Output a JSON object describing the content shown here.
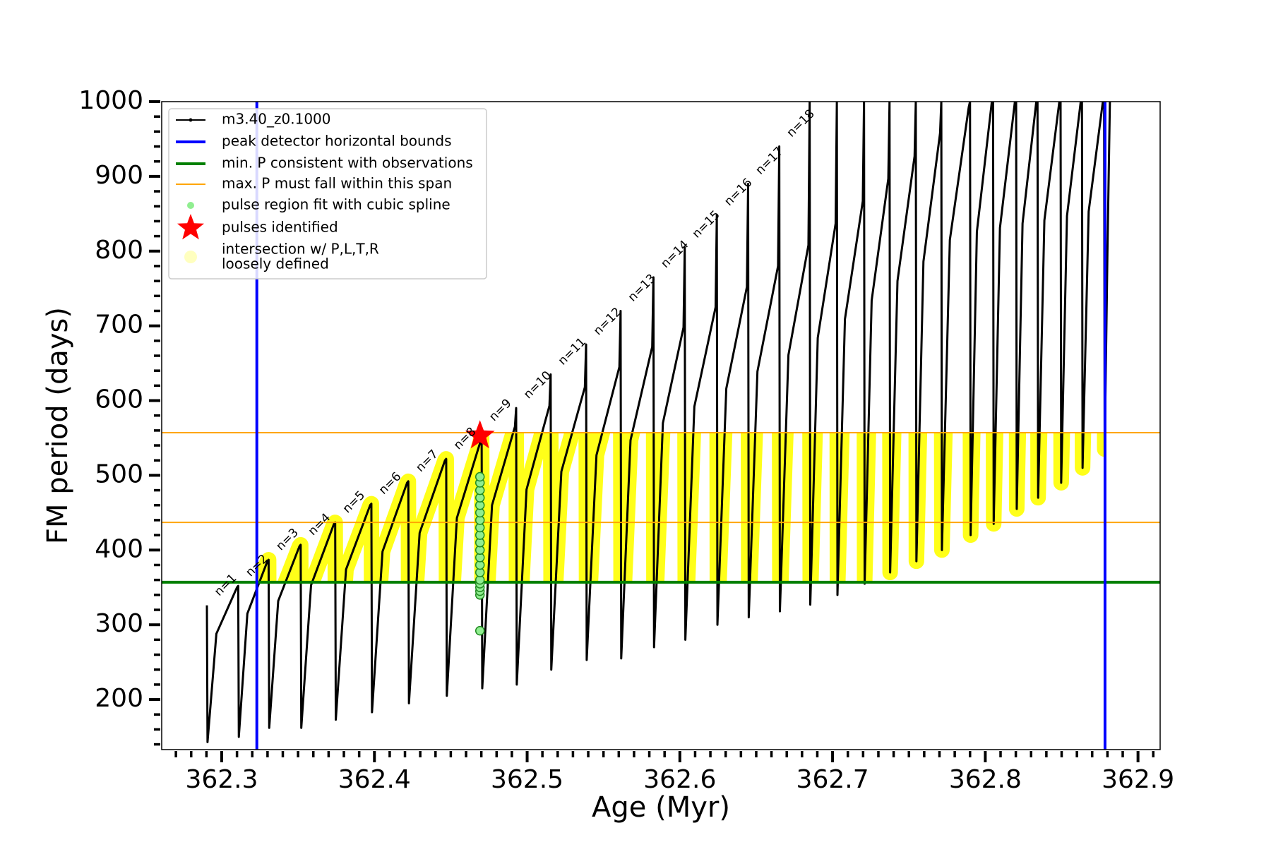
{
  "chart_data": {
    "type": "line",
    "xlabel": "Age (Myr)",
    "ylabel": "FM period (days)",
    "xlim": [
      362.2607,
      362.9145
    ],
    "ylim": [
      133,
      1000
    ],
    "xticks": [
      362.3,
      362.4,
      362.5,
      362.6,
      362.7,
      362.8,
      362.9
    ],
    "yticks": [
      200,
      300,
      400,
      500,
      600,
      700,
      800,
      900,
      1000
    ],
    "xminorticks": [
      362.27,
      362.28,
      362.29,
      362.31,
      362.32,
      362.33,
      362.34,
      362.35,
      362.36,
      362.37,
      362.38,
      362.39,
      362.41,
      362.42,
      362.43,
      362.44,
      362.45,
      362.46,
      362.47,
      362.48,
      362.49,
      362.51,
      362.52,
      362.53,
      362.54,
      362.55,
      362.56,
      362.57,
      362.58,
      362.59,
      362.61,
      362.62,
      362.63,
      362.64,
      362.65,
      362.66,
      362.67,
      362.68,
      362.69,
      362.71,
      362.72,
      362.73,
      362.74,
      362.75,
      362.76,
      362.77,
      362.78,
      362.79,
      362.81,
      362.82,
      362.83,
      362.84,
      362.85,
      362.86,
      362.87,
      362.88,
      362.89,
      362.91
    ],
    "yminorticks": [
      140,
      160,
      180,
      220,
      240,
      260,
      280,
      320,
      340,
      360,
      380,
      420,
      440,
      460,
      480,
      520,
      540,
      560,
      580,
      620,
      640,
      660,
      680,
      720,
      740,
      760,
      780,
      820,
      840,
      860,
      880,
      920,
      940,
      960,
      980
    ],
    "legend": "upper left",
    "series": [
      {
        "name": "m3.40_z0.1000",
        "color": "#000000",
        "x": [
          362.2903,
          362.2907,
          362.2965,
          362.31,
          362.3108,
          362.3112,
          362.3168,
          362.3299,
          362.3307,
          362.3311,
          362.337,
          362.3509,
          362.3517,
          362.3521,
          362.3585,
          362.3735,
          362.3743,
          362.3747,
          362.3814,
          362.3972,
          362.398,
          362.3984,
          362.4053,
          362.4214,
          362.4222,
          362.4226,
          362.4296,
          362.4462,
          362.447,
          362.4474,
          362.454,
          362.4694,
          362.4702,
          362.4706,
          362.477,
          362.492,
          362.4928,
          362.4932,
          362.4996,
          362.5146,
          362.5154,
          362.5158,
          362.5224,
          362.5378,
          362.5386,
          362.539,
          362.5454,
          362.5604,
          362.5612,
          362.5616,
          362.5677,
          362.5819,
          362.5827,
          362.5831,
          362.5889,
          362.6024,
          362.6032,
          362.6036,
          362.6095,
          362.6234,
          362.6242,
          362.6246,
          362.6304,
          362.6439,
          362.6447,
          362.6451,
          362.6508,
          362.6643,
          362.6651,
          362.6655,
          362.6711,
          362.6842,
          362.685,
          362.6854,
          362.6903,
          362.702,
          362.7028,
          362.7032,
          362.7081,
          362.7198,
          362.7206,
          362.721,
          362.7256,
          362.7365,
          362.7373,
          362.7377,
          362.7425,
          362.7537,
          362.7545,
          362.7549,
          362.7595,
          362.7704,
          362.7712,
          362.7716,
          362.7768,
          362.7892,
          362.79,
          362.7904,
          362.7945,
          362.8043,
          362.8051,
          362.8055,
          362.8096,
          362.8194,
          362.8202,
          362.8206,
          362.8244,
          362.8334,
          362.8342,
          362.8346,
          362.8387,
          362.8485,
          362.8493,
          362.8497,
          362.8535,
          362.8625,
          362.8633,
          362.8637,
          362.8677,
          362.877,
          362.8778,
          362.8782,
          362.88,
          362.8816
        ],
        "values": [
          326,
          143,
          288,
          350,
          352,
          150,
          315,
          385,
          387,
          162,
          332,
          405,
          407,
          162,
          353,
          435,
          437,
          173,
          374,
          460,
          462,
          183,
          398,
          490,
          492,
          195,
          423,
          520,
          522,
          205,
          443,
          545,
          560,
          215,
          460,
          565,
          590,
          220,
          481,
          593,
          635,
          240,
          505,
          618,
          675,
          253,
          527,
          645,
          720,
          255,
          547,
          672,
          765,
          270,
          570,
          698,
          805,
          280,
          592,
          725,
          848,
          300,
          616,
          752,
          890,
          310,
          639,
          780,
          940,
          318,
          661,
          808,
          1000,
          327,
          684,
          837,
          1000,
          340,
          709,
          867,
          1000,
          355,
          734,
          897,
          1000,
          370,
          760,
          927,
          1000,
          385,
          786,
          958,
          1000,
          400,
          815,
          993,
          1000,
          420,
          826,
          1000,
          1000,
          435,
          831,
          1000,
          1000,
          455,
          837,
          1000,
          1000,
          470,
          841,
          1000,
          1000,
          490,
          847,
          1000,
          1000,
          510,
          853,
          1000,
          1000,
          535,
          800,
          1000
        ]
      }
    ],
    "vlines": {
      "name": "peak detector horizontal bounds",
      "color": "#0000ff",
      "x": [
        362.323,
        362.8784
      ]
    },
    "hlines": [
      {
        "name": "min. P consistent with observations",
        "color": "#008000",
        "values": [
          357
        ]
      },
      {
        "name": "max. P must fall within this span",
        "color": "#ffa500",
        "values": [
          437,
          557
        ]
      }
    ],
    "scatter": {
      "name": "pulse region fit with cubic spline",
      "color": "#90ee90",
      "x": [
        362.4691,
        362.4691,
        362.4691,
        362.4691,
        362.4691,
        362.4691,
        362.4691,
        362.4691,
        362.4691,
        362.4691,
        362.4691,
        362.4691,
        362.4691,
        362.4691,
        362.4691,
        362.4691,
        362.4691,
        362.4691,
        362.4691,
        362.4691
      ],
      "values": [
        292,
        340,
        345,
        350,
        355,
        360,
        370,
        380,
        390,
        400,
        410,
        420,
        430,
        440,
        450,
        460,
        470,
        480,
        490,
        498
      ]
    },
    "star": {
      "name": "pulses identified",
      "color": "#ff0000",
      "x": [
        362.4691
      ],
      "values": [
        553
      ]
    },
    "highlight": {
      "name": "intersection w/ P,L,T,R\nloosely defined",
      "color": "#ffff00"
    },
    "annotations": [
      "n=1",
      "n=2",
      "n=3",
      "n=4",
      "n=5",
      "n=6",
      "n=7",
      "n=8",
      "n=9",
      "n=10",
      "n=11",
      "n=12",
      "n=13",
      "n=14",
      "n=15",
      "n=16",
      "n=17",
      "n=18"
    ]
  }
}
